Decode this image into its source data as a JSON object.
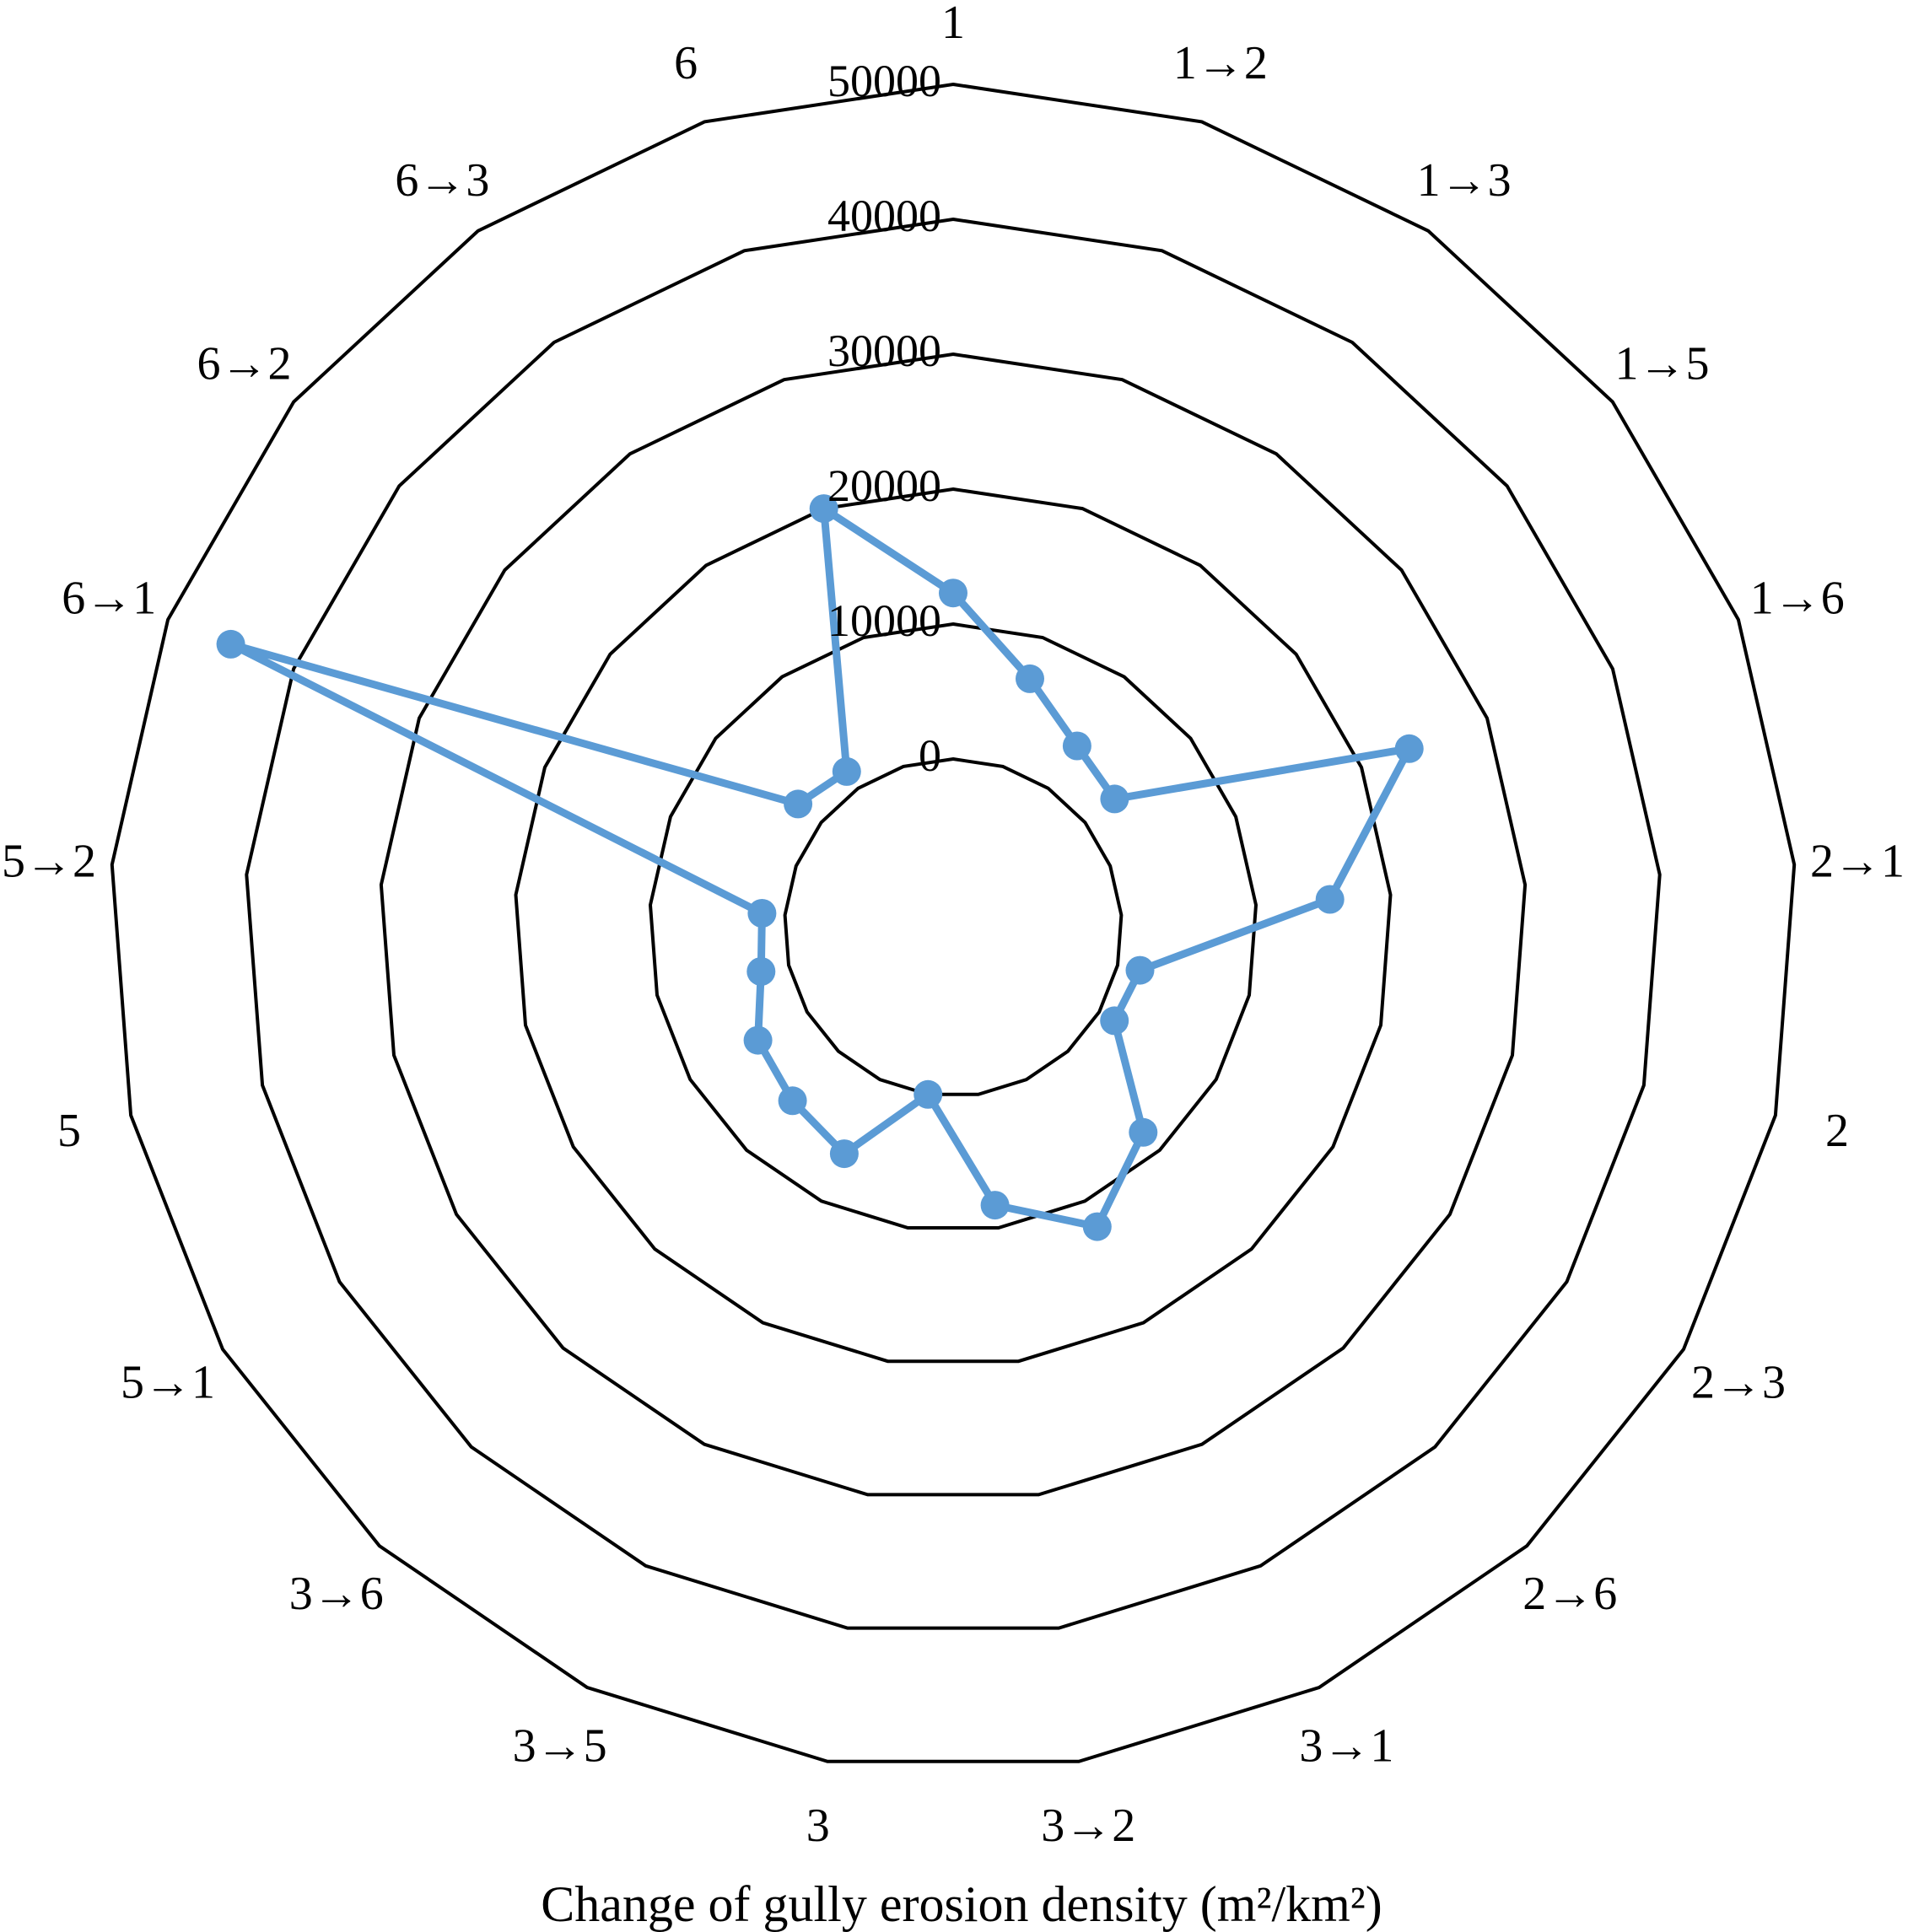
{
  "chart_data": {
    "type": "radar",
    "categories": [
      "1",
      "1→2",
      "1→3",
      "1→5",
      "1→6",
      "2→1",
      "2",
      "2→3",
      "2→6",
      "3→1",
      "3→2",
      "3",
      "3→5",
      "3→6",
      "5→1",
      "5",
      "5→2",
      "6→1",
      "6→2",
      "6→3",
      "6"
    ],
    "series": [
      {
        "values": [
          12300,
          6800,
          3800,
          2800,
          23800,
          15500,
          1700,
          1300,
          8200,
          12100,
          8300,
          0,
          6100,
          5000,
          4200,
          2100,
          1700,
          45000,
          2200,
          1500,
          20000
        ],
        "color": "#5b9bd5"
      }
    ],
    "rlim": [
      0,
      50000
    ],
    "ticks": [
      0,
      10000,
      20000,
      30000,
      40000,
      50000
    ],
    "tick_labels": [
      "0",
      "10000",
      "20000",
      "30000",
      "40000",
      "50000"
    ],
    "grid": "polygon",
    "legend": "none",
    "xlabel": "Change of gully erosion density (m²/km²)"
  }
}
